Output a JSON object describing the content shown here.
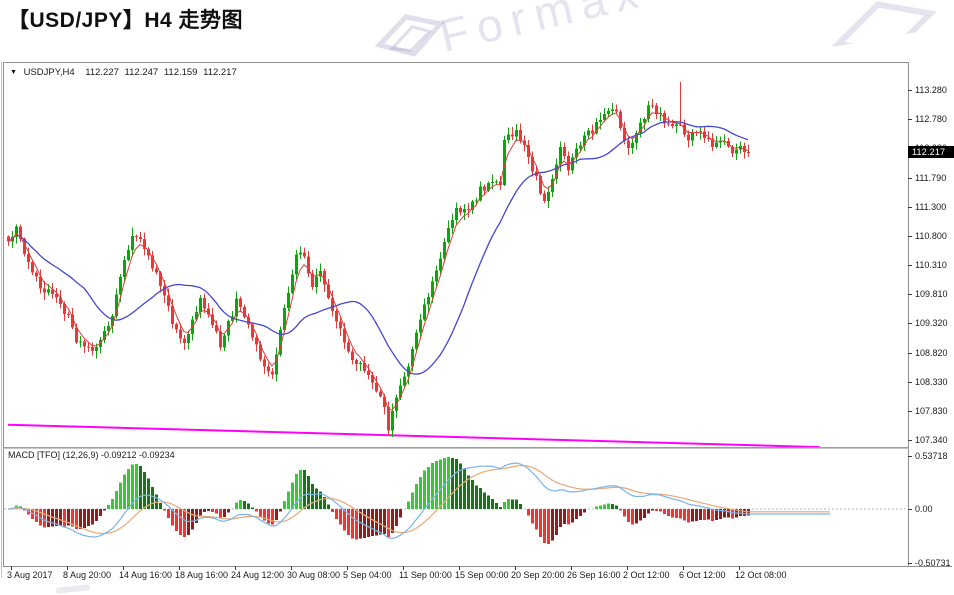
{
  "page": {
    "title": "【USD/JPY】H4 走势图"
  },
  "watermark": {
    "text": "Formax"
  },
  "chart": {
    "header": {
      "collapse_icon": "▼",
      "symbol": "USDJPY,H4",
      "open": "112.227",
      "high": "112.247",
      "low": "112.159",
      "close": "112.217"
    },
    "price_axis": {
      "labels": [
        "113.280",
        "112.780",
        "112.280",
        "111.790",
        "111.300",
        "110.800",
        "110.310",
        "109.810",
        "109.320",
        "108.820",
        "108.330",
        "107.830",
        "107.340"
      ],
      "current_badge": "112.217"
    },
    "time_axis": {
      "labels": [
        "3 Aug 2017",
        "8 Aug 20:00",
        "14 Aug 16:00",
        "18 Aug 16:00",
        "24 Aug 12:00",
        "30 Aug 08:00",
        "5 Sep 04:00",
        "11 Sep 00:00",
        "15 Sep 00:00",
        "20 Sep 20:00",
        "26 Sep 16:00",
        "2 Oct 12:00",
        "6 Oct 12:00",
        "12 Oct 08:00"
      ]
    },
    "macd": {
      "label": "MACD [TFO] (12,26,9) -0.09212 -0.09234",
      "scale_top": "0.53718",
      "scale_zero": "0.00",
      "scale_bottom": "-0.50731"
    }
  },
  "chart_data": {
    "type": "candlestick",
    "symbol": "USDJPY",
    "timeframe": "H4",
    "last_ohlc": {
      "open": 112.227,
      "high": 112.247,
      "low": 112.159,
      "close": 112.217
    },
    "price_range": [
      107.34,
      113.28
    ],
    "macd_range": [
      -0.50731,
      0.53718
    ],
    "macd_params": "12,26,9",
    "price_anchors": [
      [
        0,
        110.7
      ],
      [
        2,
        110.92
      ],
      [
        5,
        110.35
      ],
      [
        8,
        109.95
      ],
      [
        12,
        109.72
      ],
      [
        15,
        109.45
      ],
      [
        17,
        109.05
      ],
      [
        21,
        108.82
      ],
      [
        23,
        109.02
      ],
      [
        26,
        109.5
      ],
      [
        28,
        110.15
      ],
      [
        31,
        110.85
      ],
      [
        33,
        110.78
      ],
      [
        37,
        110.15
      ],
      [
        41,
        109.35
      ],
      [
        44,
        108.98
      ],
      [
        48,
        109.72
      ],
      [
        50,
        109.5
      ],
      [
        53,
        108.95
      ],
      [
        57,
        109.68
      ],
      [
        59,
        109.42
      ],
      [
        63,
        108.72
      ],
      [
        66,
        108.45
      ],
      [
        69,
        109.6
      ],
      [
        72,
        110.5
      ],
      [
        74,
        110.45
      ],
      [
        76,
        110.0
      ],
      [
        78,
        110.22
      ],
      [
        82,
        109.35
      ],
      [
        86,
        108.72
      ],
      [
        89,
        108.52
      ],
      [
        92,
        108.15
      ],
      [
        94,
        107.95
      ],
      [
        95,
        107.5
      ],
      [
        97,
        108.1
      ],
      [
        100,
        108.62
      ],
      [
        104,
        109.6
      ],
      [
        107,
        110.18
      ],
      [
        110,
        110.88
      ],
      [
        112,
        111.22
      ],
      [
        115,
        111.2
      ],
      [
        118,
        111.58
      ],
      [
        121,
        111.68
      ],
      [
        123,
        111.72
      ],
      [
        124,
        112.42
      ],
      [
        127,
        112.55
      ],
      [
        129,
        112.3
      ],
      [
        132,
        111.78
      ],
      [
        134,
        111.35
      ],
      [
        138,
        112.32
      ],
      [
        140,
        111.92
      ],
      [
        143,
        112.4
      ],
      [
        146,
        112.6
      ],
      [
        149,
        112.92
      ],
      [
        152,
        112.88
      ],
      [
        155,
        112.25
      ],
      [
        157,
        112.52
      ],
      [
        160,
        112.98
      ],
      [
        162,
        112.92
      ],
      [
        165,
        112.68
      ],
      [
        168,
        112.72
      ],
      [
        170,
        112.45
      ],
      [
        173,
        112.62
      ],
      [
        176,
        112.32
      ],
      [
        179,
        112.42
      ],
      [
        181,
        112.18
      ],
      [
        183,
        112.35
      ],
      [
        185,
        112.217
      ]
    ],
    "wick_overrides": {
      "2": {
        "high": 111.0
      },
      "31": {
        "high": 110.95
      },
      "95": {
        "low": 107.42
      },
      "168": {
        "high": 113.42
      }
    },
    "trendline": {
      "points": [
        [
          8,
          107.6
        ],
        [
          820,
          107.22
        ]
      ]
    },
    "colors": {
      "candle_up": "#12a112",
      "candle_down": "#e13b3b",
      "ma_fast": "#e13b3b",
      "ma_slow": "#4646d2",
      "trendline": "#ff00ff",
      "macd_up_strong": "#3ec43e",
      "macd_up_weak": "#1d701d",
      "macd_down_strong": "#ea3838",
      "macd_down_weak": "#872222",
      "macd_line": "#7ab4ea",
      "macd_signal": "#eaa874",
      "badge_bg": "#000000",
      "badge_text": "#ffffff"
    }
  }
}
